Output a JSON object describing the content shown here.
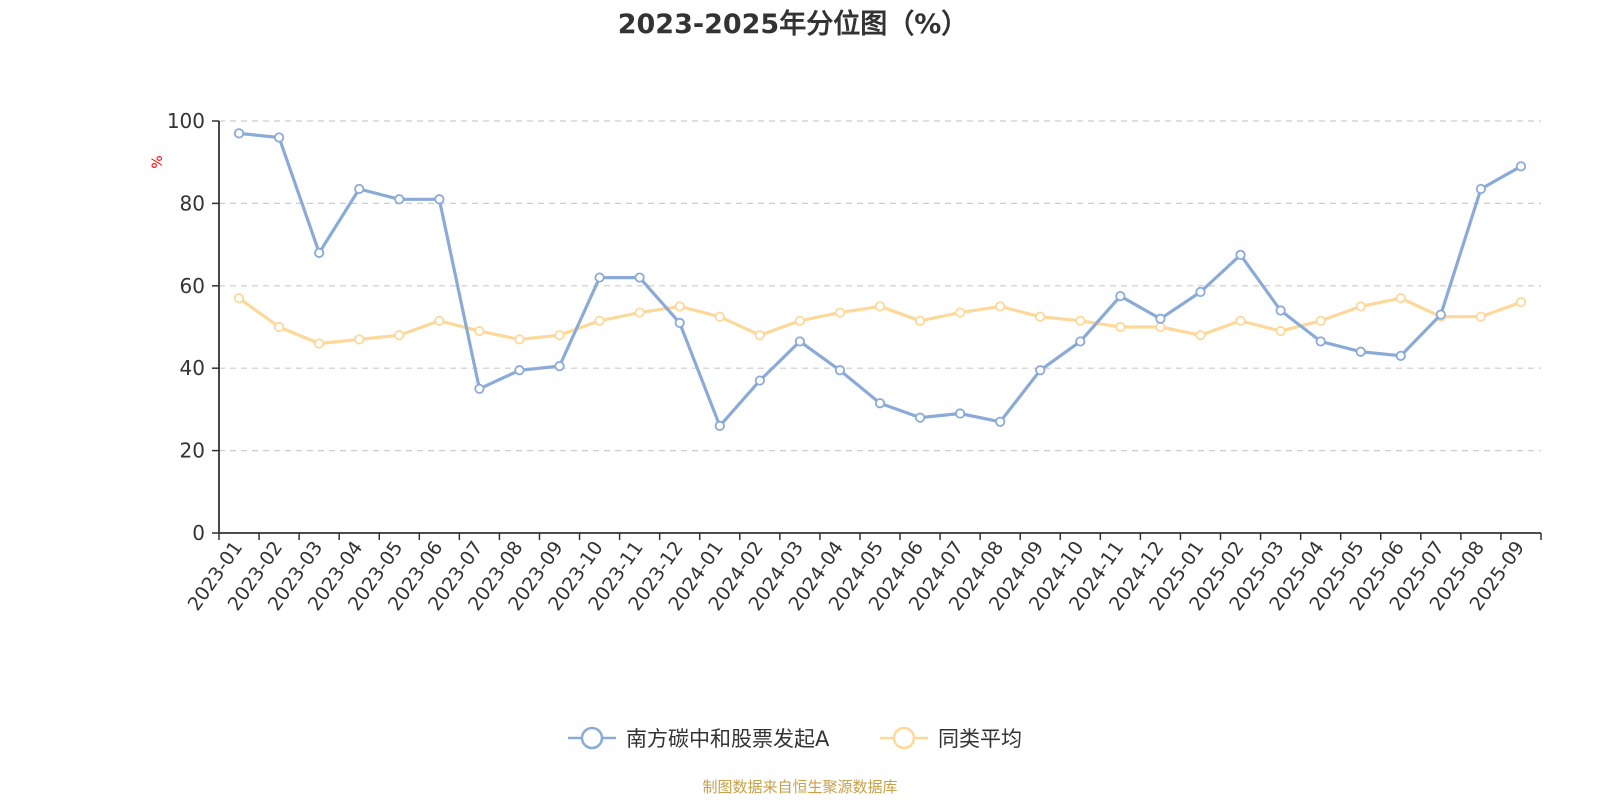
{
  "chart_data": {
    "type": "line",
    "title": "2023-2025年分位图（%）",
    "ylabel": "%",
    "xlabel": "",
    "ylim": [
      0,
      100
    ],
    "yticks": [
      0,
      20,
      40,
      60,
      80,
      100
    ],
    "grid": true,
    "legend_position": "bottom",
    "categories": [
      "2023-01",
      "2023-02",
      "2023-03",
      "2023-04",
      "2023-05",
      "2023-06",
      "2023-07",
      "2023-08",
      "2023-09",
      "2023-10",
      "2023-11",
      "2023-12",
      "2024-01",
      "2024-02",
      "2024-03",
      "2024-04",
      "2024-05",
      "2024-06",
      "2024-07",
      "2024-08",
      "2024-09",
      "2024-10",
      "2024-11",
      "2024-12",
      "2025-01",
      "2025-02",
      "2025-03",
      "2025-04",
      "2025-05",
      "2025-06",
      "2025-07",
      "2025-08",
      "2025-09"
    ],
    "series": [
      {
        "name": "南方碳中和股票发起A",
        "color": "#8aaad8",
        "values": [
          97,
          96,
          68,
          83.5,
          81,
          81,
          35,
          39.5,
          40.5,
          62,
          62,
          51,
          26,
          37,
          46.5,
          39.5,
          31.5,
          28,
          29,
          27,
          39.5,
          46.5,
          57.5,
          52,
          58.5,
          67.5,
          54,
          46.5,
          44,
          43,
          53,
          83.5,
          89
        ]
      },
      {
        "name": "同类平均",
        "color": "#fcd99a",
        "values": [
          57,
          50,
          46,
          47,
          48,
          51.5,
          49,
          47,
          48,
          51.5,
          53.5,
          55,
          52.5,
          48,
          51.5,
          53.5,
          55,
          51.5,
          53.5,
          55,
          52.5,
          51.5,
          50,
          50,
          48,
          51.5,
          49,
          51.5,
          55,
          57,
          52.5,
          52.5,
          56
        ]
      }
    ],
    "source": "制图数据来自恒生聚源数据库"
  }
}
